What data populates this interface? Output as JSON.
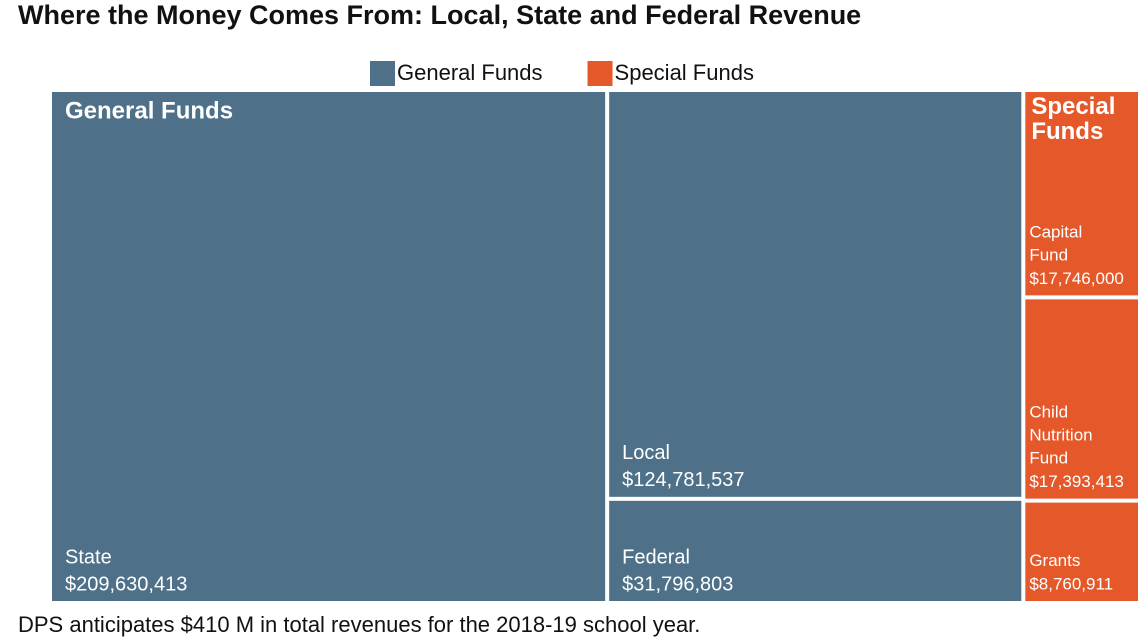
{
  "chart_data": {
    "type": "treemap",
    "title": "Where the Money Comes From: Local, State and Federal Revenue",
    "note": "DPS anticipates $410 M in total revenues for the 2018-19 school year.",
    "series": [
      {
        "name": "General Funds",
        "color": "#4e7189",
        "categories": [
          "State",
          "Local",
          "Federal"
        ],
        "values": [
          209630413,
          124781537,
          31796803
        ],
        "value_labels": [
          "$209,630,413",
          "$124,781,537",
          "$31,796,803"
        ]
      },
      {
        "name": "Special Funds",
        "color": "#e5582a",
        "categories": [
          "Capital Fund",
          "Child Nutrition Fund",
          "Grants"
        ],
        "values": [
          17746000,
          17393413,
          8760911
        ],
        "value_labels": [
          "$17,746,000",
          "$17,393,413",
          "$8,760,911"
        ]
      }
    ]
  }
}
